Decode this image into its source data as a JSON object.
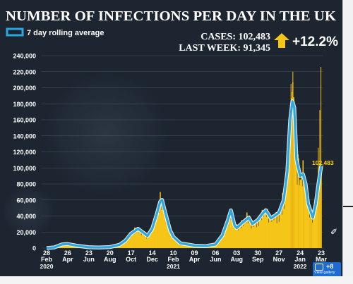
{
  "chart_data": {
    "type": "bar",
    "title": "NUMBER OF INFECTIONS PER DAY IN THE UK",
    "legend": {
      "label": "7 day rolling average",
      "placement": "top-left"
    },
    "summary": {
      "cases": "CASES: 102,483",
      "last_week": "LAST WEEK: 91,345",
      "change": "+12.2%"
    },
    "callout": "102,483",
    "ylim": [
      0,
      240000
    ],
    "y_ticks": [
      "0",
      "20,000",
      "40,000",
      "60,000",
      "80,000",
      "100,000",
      "120,000",
      "140,000",
      "160,000",
      "180,000",
      "200,000",
      "220,000",
      "240,000"
    ],
    "x_ticks": [
      {
        "day": "28",
        "month": "Feb",
        "year": "2020",
        "date": "2020-02-28"
      },
      {
        "day": "26",
        "month": "Apr",
        "year": "",
        "date": "2020-04-26"
      },
      {
        "day": "23",
        "month": "Jun",
        "year": "",
        "date": "2020-06-23"
      },
      {
        "day": "20",
        "month": "Aug",
        "year": "",
        "date": "2020-08-20"
      },
      {
        "day": "17",
        "month": "Oct",
        "year": "",
        "date": "2020-10-17"
      },
      {
        "day": "14",
        "month": "Dec",
        "year": "",
        "date": "2020-12-14"
      },
      {
        "day": "10",
        "month": "Feb",
        "year": "2021",
        "date": "2021-02-10"
      },
      {
        "day": "09",
        "month": "Apr",
        "year": "",
        "date": "2021-04-09"
      },
      {
        "day": "06",
        "month": "Jun",
        "year": "",
        "date": "2021-06-06"
      },
      {
        "day": "03",
        "month": "Aug",
        "year": "",
        "date": "2021-08-03"
      },
      {
        "day": "30",
        "month": "Sep",
        "year": "",
        "date": "2021-09-30"
      },
      {
        "day": "27",
        "month": "Nov",
        "year": "",
        "date": "2021-11-27"
      },
      {
        "day": "24",
        "month": "Jan",
        "year": "2022",
        "date": "2022-01-24"
      },
      {
        "day": "23",
        "month": "Mar",
        "year": "",
        "date": "2022-03-23"
      }
    ],
    "series": [
      {
        "name": "7 day rolling average",
        "points": [
          [
            "2020-02-28",
            0
          ],
          [
            "2020-03-20",
            800
          ],
          [
            "2020-04-10",
            4500
          ],
          [
            "2020-04-26",
            5000
          ],
          [
            "2020-05-20",
            3000
          ],
          [
            "2020-06-23",
            1000
          ],
          [
            "2020-07-20",
            700
          ],
          [
            "2020-08-20",
            1200
          ],
          [
            "2020-09-15",
            4000
          ],
          [
            "2020-10-01",
            9000
          ],
          [
            "2020-10-17",
            18000
          ],
          [
            "2020-11-05",
            24000
          ],
          [
            "2020-11-20",
            19000
          ],
          [
            "2020-12-01",
            15000
          ],
          [
            "2020-12-14",
            24000
          ],
          [
            "2020-12-25",
            40000
          ],
          [
            "2021-01-05",
            58000
          ],
          [
            "2021-01-10",
            60000
          ],
          [
            "2021-01-20",
            42000
          ],
          [
            "2021-02-01",
            22000
          ],
          [
            "2021-02-10",
            14000
          ],
          [
            "2021-03-01",
            6000
          ],
          [
            "2021-04-09",
            3000
          ],
          [
            "2021-05-10",
            2500
          ],
          [
            "2021-06-06",
            4500
          ],
          [
            "2021-06-25",
            16000
          ],
          [
            "2021-07-10",
            35000
          ],
          [
            "2021-07-18",
            47000
          ],
          [
            "2021-07-28",
            28000
          ],
          [
            "2021-08-03",
            25000
          ],
          [
            "2021-08-20",
            32000
          ],
          [
            "2021-09-05",
            38000
          ],
          [
            "2021-09-15",
            30000
          ],
          [
            "2021-09-30",
            35000
          ],
          [
            "2021-10-15",
            44000
          ],
          [
            "2021-10-22",
            47000
          ],
          [
            "2021-11-05",
            37000
          ],
          [
            "2021-11-27",
            44000
          ],
          [
            "2021-12-10",
            60000
          ],
          [
            "2021-12-20",
            95000
          ],
          [
            "2021-12-28",
            160000
          ],
          [
            "2022-01-03",
            183000
          ],
          [
            "2022-01-08",
            175000
          ],
          [
            "2022-01-14",
            110000
          ],
          [
            "2022-01-24",
            90000
          ],
          [
            "2022-02-01",
            92000
          ],
          [
            "2022-02-08",
            80000
          ],
          [
            "2022-02-15",
            55000
          ],
          [
            "2022-02-28",
            38000
          ],
          [
            "2022-03-08",
            55000
          ],
          [
            "2022-03-16",
            82000
          ],
          [
            "2022-03-23",
            102483
          ]
        ]
      }
    ],
    "colors": {
      "background": "#1c2530",
      "bars": "#f5c518",
      "line": "#2aa8e0",
      "title": "#ffffff",
      "arrow": "#f5c518",
      "callout": "#ffd500",
      "gallery_button": "#1e6bd1"
    },
    "grid": true
  },
  "gallery": {
    "count": "+8",
    "label": "View gallery"
  },
  "icons": {
    "camera": "camera-icon",
    "share": "share-icon",
    "arrow": "up-arrow-icon"
  }
}
